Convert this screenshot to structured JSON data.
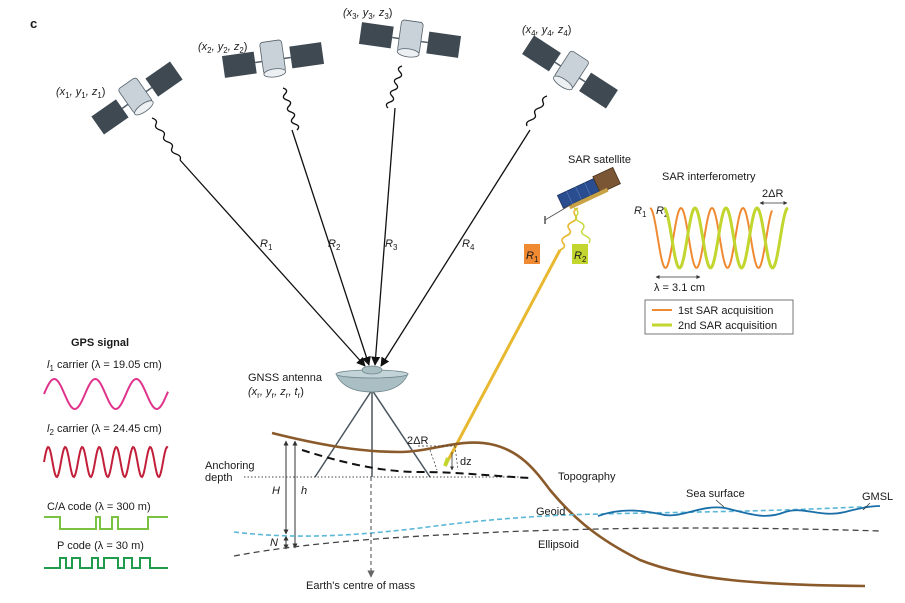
{
  "panel_label": "c",
  "satellites": [
    {
      "label_parts": [
        "(x",
        "1",
        ", y",
        "1",
        ", z",
        "1",
        ")"
      ],
      "range_label": "R",
      "range_sub": "1"
    },
    {
      "label_parts": [
        "(x",
        "2",
        ", y",
        "2",
        ", z",
        "2",
        ")"
      ],
      "range_label": "R",
      "range_sub": "2"
    },
    {
      "label_parts": [
        "(x",
        "3",
        ", y",
        "3",
        ", z",
        "3",
        ")"
      ],
      "range_label": "R",
      "range_sub": "3"
    },
    {
      "label_parts": [
        "(x",
        "4",
        ", y",
        "4",
        ", z",
        "4",
        ")"
      ],
      "range_label": "R",
      "range_sub": "4"
    }
  ],
  "gnss": {
    "title": "GNSS antenna",
    "coords_parts": [
      "(x",
      "r",
      ", y",
      "r",
      ", z",
      "r",
      ", t",
      "r",
      ")"
    ]
  },
  "sar": {
    "satellite_label": "SAR satellite",
    "r1_box": {
      "main": "R",
      "sub": "1"
    },
    "r2_box": {
      "main": "R",
      "sub": "2"
    },
    "interferometry_title": "SAR interferometry",
    "delta_r": "2ΔR",
    "r1": {
      "main": "R",
      "sub": "1"
    },
    "r2": {
      "main": "R",
      "sub": "2"
    },
    "wavelength": "λ = 3.1 cm",
    "legend": [
      {
        "label": "1st SAR acquisition",
        "color": "#f08a32"
      },
      {
        "label": "2nd SAR acquisition",
        "color": "#c2d62f"
      }
    ]
  },
  "gps_signal": {
    "title": "GPS signal",
    "items": [
      {
        "prefix": "l",
        "sub": "1",
        "text": " carrier (λ = 19.05 cm)",
        "color": "#e0338c"
      },
      {
        "prefix": "l",
        "sub": "2",
        "text": " carrier (λ = 24.45 cm)",
        "color": "#c21f3a"
      },
      {
        "prefix": "",
        "sub": "",
        "text": "C/A code (λ = 300 m)",
        "color": "#7cc242"
      },
      {
        "prefix": "",
        "sub": "",
        "text": "P code (λ = 30 m)",
        "color": "#1f9b4c"
      }
    ]
  },
  "ground": {
    "anchoring_depth": [
      "Anchoring",
      "depth"
    ],
    "H": "H",
    "h": "h",
    "N": "N",
    "delta_r": "2ΔR",
    "dz": "dz",
    "topography": "Topography",
    "sea_surface": "Sea surface",
    "gmsl": "GMSL",
    "geoid": "Geoid",
    "ellipsoid": "Ellipsoid",
    "earth_centre": "Earth's centre of mass"
  },
  "colors": {
    "topography": "#8b5a2b",
    "geoid": "#5bb8d8",
    "sea": "#1a6fa8",
    "sar_beam": "#e8b830",
    "antenna": "#a9bfc4"
  }
}
